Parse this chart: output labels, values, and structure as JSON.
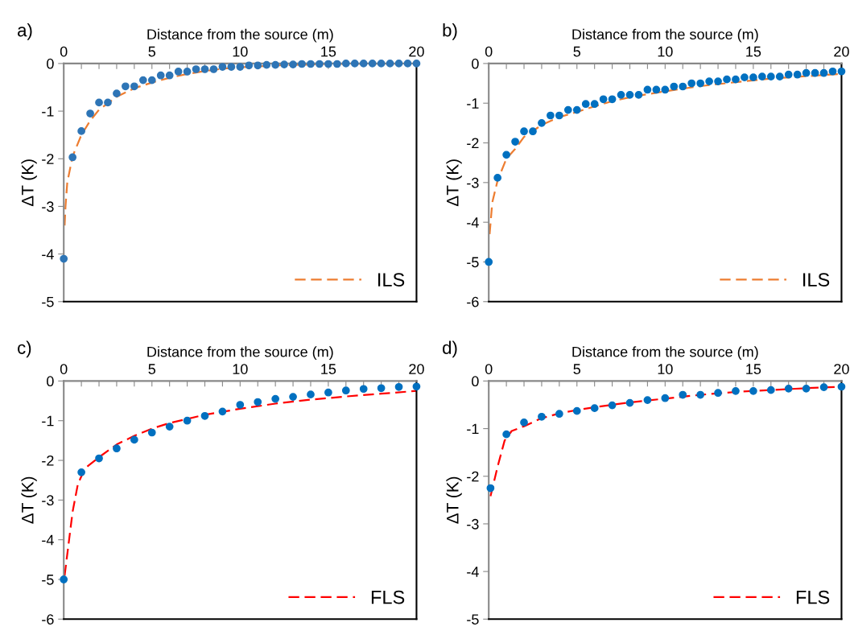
{
  "chart_data": [
    {
      "type": "scatter",
      "title": "a)",
      "xlabel": "Distance from the source (m)",
      "ylabel": "ΔT (K)",
      "xlim": [
        0,
        20
      ],
      "ylim": [
        -5,
        0
      ],
      "xticks": [
        0,
        {
          "value": 1,
          "label": null
        },
        {
          "value": 2,
          "label": null
        },
        {
          "value": 3,
          "label": null
        },
        {
          "value": 4,
          "label": null
        },
        5,
        {
          "value": 6,
          "label": null
        },
        {
          "value": 7,
          "label": null
        },
        {
          "value": 8,
          "label": null
        },
        {
          "value": 9,
          "label": null
        },
        10,
        15,
        20
      ],
      "yticks": [
        {
          "value": -5,
          "label": "-5"
        },
        {
          "value": -4,
          "label": "-4"
        },
        {
          "value": -3,
          "label": "-3"
        },
        {
          "value": -2,
          "label": "-2"
        },
        {
          "value": -1,
          "label": "-1"
        },
        0
      ],
      "grid": false,
      "legend": "bottom right",
      "series": [
        {
          "color": "#2e75b6",
          "marker": "circle",
          "x": [
            0,
            0.5,
            1,
            1.5,
            2,
            2.5,
            3,
            3.5,
            4,
            4.5,
            5,
            5.5,
            6,
            6.5,
            7,
            7.5,
            8,
            8.5,
            9,
            9.5,
            10,
            10.5,
            11,
            11.5,
            12,
            12.5,
            13,
            13.5,
            14,
            14.5,
            15,
            15.5,
            16,
            16.5,
            17,
            17.5,
            18,
            18.5,
            19,
            19.5,
            20
          ],
          "values": [
            -4.1,
            -1.97,
            -1.42,
            -1.05,
            -0.82,
            -0.82,
            -0.63,
            -0.48,
            -0.48,
            -0.35,
            -0.35,
            -0.25,
            -0.25,
            -0.17,
            -0.17,
            -0.12,
            -0.12,
            -0.12,
            -0.07,
            -0.07,
            -0.07,
            -0.04,
            -0.04,
            -0.03,
            -0.03,
            -0.02,
            -0.02,
            -0.01,
            -0.01,
            -0.01,
            -0.01,
            -0.01,
            0,
            0,
            0,
            0,
            0,
            0,
            0,
            0,
            0
          ]
        },
        {
          "type": "line",
          "name": "ILS",
          "color": "#ed7d31",
          "line_style": "dashed",
          "marker": "none",
          "x": [
            0.05,
            0.1,
            0.2,
            0.5,
            1,
            1.5,
            2,
            3,
            4,
            5,
            6,
            7,
            8,
            9,
            10,
            12,
            15,
            20
          ],
          "values": [
            -3.4,
            -3.0,
            -2.5,
            -1.95,
            -1.5,
            -1.2,
            -0.97,
            -0.7,
            -0.52,
            -0.4,
            -0.3,
            -0.22,
            -0.16,
            -0.11,
            -0.08,
            -0.04,
            -0.01,
            0
          ]
        }
      ]
    },
    {
      "type": "scatter",
      "title": "b)",
      "xlabel": "Distance from the source (m)",
      "ylabel": "ΔT (K)",
      "xlim": [
        0,
        20
      ],
      "ylim": [
        -6,
        0
      ],
      "xticks": [
        0,
        {
          "value": 1,
          "label": null
        },
        {
          "value": 2,
          "label": null
        },
        {
          "value": 3,
          "label": null
        },
        {
          "value": 4,
          "label": null
        },
        5,
        {
          "value": 6,
          "label": null
        },
        {
          "value": 7,
          "label": null
        },
        {
          "value": 8,
          "label": null
        },
        {
          "value": 9,
          "label": null
        },
        10,
        {
          "value": 11,
          "label": null
        },
        {
          "value": 12,
          "label": null
        },
        {
          "value": 13,
          "label": null
        },
        {
          "value": 14,
          "label": null
        },
        15,
        {
          "value": 16,
          "label": null
        },
        {
          "value": 17,
          "label": null
        },
        {
          "value": 18,
          "label": null
        },
        {
          "value": 19,
          "label": null
        },
        20
      ],
      "yticks": [
        {
          "value": -6,
          "label": "-6"
        },
        {
          "value": -5,
          "label": "-5"
        },
        {
          "value": -4,
          "label": "-4"
        },
        {
          "value": -3,
          "label": "-3"
        },
        {
          "value": -2,
          "label": "-2"
        },
        {
          "value": -1,
          "label": "-1"
        },
        0
      ],
      "grid": false,
      "legend": "bottom right",
      "series": [
        {
          "color": "#0070c0",
          "marker": "circle",
          "x": [
            0,
            0.5,
            1,
            1.5,
            2,
            2.5,
            3,
            3.5,
            4,
            4.5,
            5,
            5.5,
            6,
            6.5,
            7,
            7.5,
            8,
            8.5,
            9,
            9.5,
            10,
            10.5,
            11,
            11.5,
            12,
            12.5,
            13,
            13.5,
            14,
            14.5,
            15,
            15.5,
            16,
            16.5,
            17,
            17.5,
            18,
            18.5,
            19,
            19.5,
            20
          ],
          "values": [
            -5.0,
            -2.88,
            -2.3,
            -1.97,
            -1.71,
            -1.71,
            -1.5,
            -1.31,
            -1.31,
            -1.17,
            -1.17,
            -1.02,
            -1.02,
            -0.9,
            -0.9,
            -0.79,
            -0.79,
            -0.79,
            -0.66,
            -0.66,
            -0.66,
            -0.58,
            -0.58,
            -0.5,
            -0.5,
            -0.45,
            -0.45,
            -0.4,
            -0.4,
            -0.35,
            -0.35,
            -0.33,
            -0.33,
            -0.33,
            -0.28,
            -0.28,
            -0.24,
            -0.24,
            -0.24,
            -0.2,
            -0.2
          ]
        },
        {
          "type": "line",
          "name": "ILS",
          "color": "#ed7d31",
          "line_style": "dashed",
          "marker": "none",
          "x": [
            0.05,
            0.2,
            0.5,
            1,
            1.5,
            2,
            3,
            4,
            5,
            6,
            7,
            8,
            10,
            12,
            14,
            16,
            18,
            20
          ],
          "values": [
            -4.3,
            -3.5,
            -2.95,
            -2.4,
            -2.15,
            -1.85,
            -1.55,
            -1.35,
            -1.22,
            -1.08,
            -0.95,
            -0.85,
            -0.7,
            -0.57,
            -0.47,
            -0.38,
            -0.32,
            -0.26
          ]
        }
      ]
    },
    {
      "type": "scatter",
      "title": "c)",
      "xlabel": "Distance from the source (m)",
      "ylabel": "ΔT (K)",
      "xlim": [
        0,
        20
      ],
      "ylim": [
        -6,
        0
      ],
      "xticks": [
        0,
        {
          "value": 1,
          "label": null
        },
        {
          "value": 2,
          "label": null
        },
        {
          "value": 3,
          "label": null
        },
        {
          "value": 4,
          "label": null
        },
        5,
        {
          "value": 6,
          "label": null
        },
        {
          "value": 7,
          "label": null
        },
        {
          "value": 8,
          "label": null
        },
        {
          "value": 9,
          "label": null
        },
        10,
        {
          "value": 11,
          "label": null
        },
        {
          "value": 12,
          "label": null
        },
        {
          "value": 13,
          "label": null
        },
        {
          "value": 14,
          "label": null
        },
        15,
        {
          "value": 16,
          "label": null
        },
        {
          "value": 17,
          "label": null
        },
        {
          "value": 18,
          "label": null
        },
        {
          "value": 19,
          "label": null
        },
        20
      ],
      "yticks": [
        {
          "value": -6,
          "label": "-6"
        },
        {
          "value": -5,
          "label": "-5"
        },
        {
          "value": -4,
          "label": "-4"
        },
        {
          "value": -3,
          "label": "-3"
        },
        {
          "value": -2,
          "label": "-2"
        },
        {
          "value": -1,
          "label": "-1"
        },
        0
      ],
      "grid": false,
      "legend": "bottom right",
      "series": [
        {
          "color": "#0070c0",
          "marker": "circle",
          "x": [
            0,
            1,
            2,
            3,
            4,
            5,
            6,
            7,
            8,
            9,
            10,
            11,
            12,
            13,
            14,
            15,
            16,
            17,
            18,
            19,
            20
          ],
          "values": [
            -5.0,
            -2.3,
            -1.95,
            -1.7,
            -1.48,
            -1.3,
            -1.15,
            -1.0,
            -0.88,
            -0.77,
            -0.6,
            -0.53,
            -0.45,
            -0.4,
            -0.34,
            -0.29,
            -0.24,
            -0.2,
            -0.18,
            -0.15,
            -0.14
          ]
        },
        {
          "type": "line",
          "name": "FLS",
          "color": "#ff0000",
          "line_style": "dashed",
          "marker": "none",
          "x": [
            0.05,
            0.5,
            0.8,
            1.2,
            2,
            3,
            4,
            5,
            6,
            8,
            10,
            12,
            14,
            16,
            18,
            20
          ],
          "values": [
            -4.9,
            -3.3,
            -2.6,
            -2.2,
            -1.92,
            -1.6,
            -1.38,
            -1.2,
            -1.06,
            -0.85,
            -0.7,
            -0.57,
            -0.47,
            -0.39,
            -0.32,
            -0.25
          ]
        }
      ]
    },
    {
      "type": "scatter",
      "title": "d)",
      "xlabel": "Distance from the source (m)",
      "ylabel": "ΔT (K)",
      "xlim": [
        0,
        20
      ],
      "ylim": [
        -5,
        0
      ],
      "xticks": [
        0,
        {
          "value": 1,
          "label": null
        },
        {
          "value": 2,
          "label": null
        },
        {
          "value": 3,
          "label": null
        },
        {
          "value": 4,
          "label": null
        },
        5,
        {
          "value": 6,
          "label": null
        },
        {
          "value": 7,
          "label": null
        },
        {
          "value": 8,
          "label": null
        },
        {
          "value": 9,
          "label": null
        },
        10,
        {
          "value": 11,
          "label": null
        },
        {
          "value": 12,
          "label": null
        },
        {
          "value": 13,
          "label": null
        },
        {
          "value": 14,
          "label": null
        },
        15,
        {
          "value": 16,
          "label": null
        },
        {
          "value": 17,
          "label": null
        },
        {
          "value": 18,
          "label": null
        },
        {
          "value": 19,
          "label": null
        },
        20
      ],
      "yticks": [
        {
          "value": -5,
          "label": "-5"
        },
        {
          "value": -4,
          "label": "-4"
        },
        {
          "value": -3,
          "label": "-3"
        },
        {
          "value": -2,
          "label": "-2"
        },
        {
          "value": -1,
          "label": "-1"
        },
        0
      ],
      "grid": false,
      "legend": "bottom right",
      "series": [
        {
          "color": "#0070c0",
          "marker": "circle",
          "x": [
            0.1,
            1,
            2,
            3,
            4,
            5,
            6,
            7,
            8,
            9,
            10,
            11,
            12,
            13,
            14,
            15,
            16,
            17,
            18,
            19,
            20
          ],
          "values": [
            -2.25,
            -1.12,
            -0.87,
            -0.75,
            -0.69,
            -0.63,
            -0.57,
            -0.51,
            -0.46,
            -0.4,
            -0.36,
            -0.29,
            -0.29,
            -0.25,
            -0.21,
            -0.21,
            -0.19,
            -0.16,
            -0.16,
            -0.13,
            -0.12
          ]
        },
        {
          "type": "line",
          "name": "FLS",
          "color": "#ff0000",
          "line_style": "dashed",
          "marker": "none",
          "x": [
            0.1,
            0.5,
            0.9,
            1.3,
            2,
            3,
            4,
            5,
            6,
            8,
            10,
            12,
            14,
            16,
            18,
            20
          ],
          "values": [
            -2.42,
            -1.8,
            -1.25,
            -1.05,
            -0.95,
            -0.78,
            -0.68,
            -0.61,
            -0.55,
            -0.45,
            -0.37,
            -0.29,
            -0.23,
            -0.19,
            -0.15,
            -0.12
          ]
        }
      ]
    }
  ]
}
